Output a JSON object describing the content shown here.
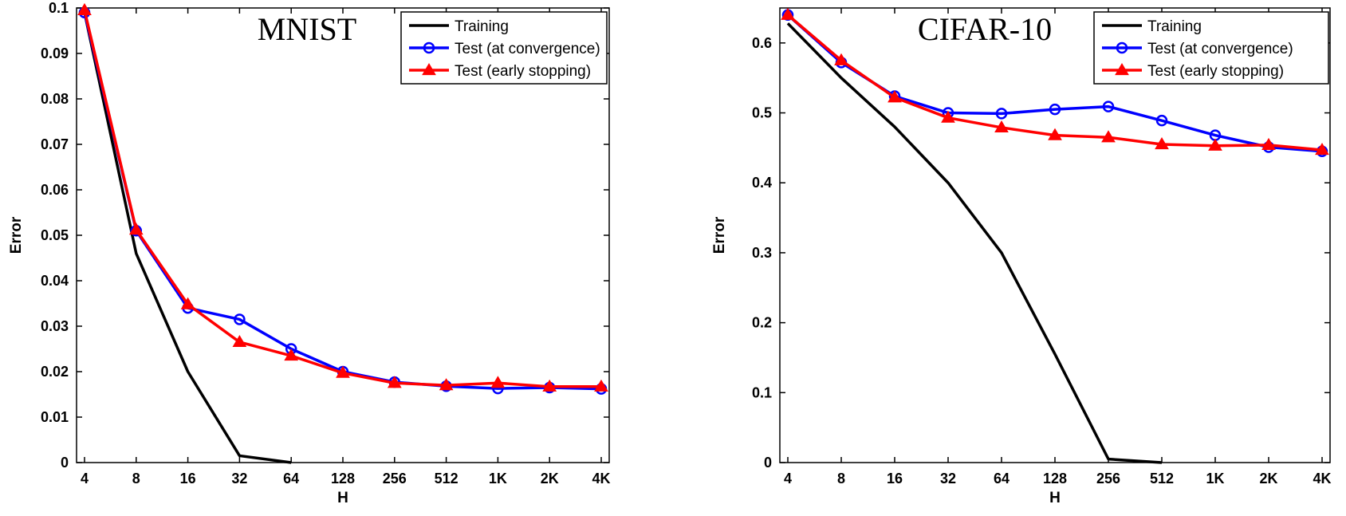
{
  "chart_data": [
    {
      "type": "line",
      "title": "MNIST",
      "xlabel": "H",
      "ylabel": "Error",
      "categories": [
        "4",
        "8",
        "16",
        "32",
        "64",
        "128",
        "256",
        "512",
        "1K",
        "2K",
        "4K"
      ],
      "ylim": [
        0,
        0.1
      ],
      "yticks": [
        "0",
        "0.01",
        "0.02",
        "0.03",
        "0.04",
        "0.05",
        "0.06",
        "0.07",
        "0.08",
        "0.09",
        "0.1"
      ],
      "grid": false,
      "legend": "top-right",
      "series": [
        {
          "name": "Training",
          "color": "#000000",
          "marker": "none",
          "values": [
            0.099,
            0.046,
            0.02,
            0.0015,
            0.0,
            null,
            null,
            null,
            null,
            null,
            null
          ]
        },
        {
          "name": "Test (at convergence)",
          "color": "#0000ff",
          "marker": "circle",
          "values": [
            0.099,
            0.051,
            0.034,
            0.0315,
            0.025,
            0.02,
            0.0177,
            0.0168,
            0.0163,
            0.0165,
            0.0162
          ]
        },
        {
          "name": "Test (early stopping)",
          "color": "#ff0000",
          "marker": "triangle",
          "values": [
            0.0995,
            0.0512,
            0.0348,
            0.0265,
            0.0235,
            0.0197,
            0.0175,
            0.017,
            0.0175,
            0.0167,
            0.0167
          ]
        }
      ]
    },
    {
      "type": "line",
      "title": "CIFAR-10",
      "xlabel": "H",
      "ylabel": "Error",
      "categories": [
        "4",
        "8",
        "16",
        "32",
        "64",
        "128",
        "256",
        "512",
        "1K",
        "2K",
        "4K"
      ],
      "ylim": [
        0,
        0.65
      ],
      "yticks": [
        "0",
        "0.1",
        "0.2",
        "0.3",
        "0.4",
        "0.5",
        "0.6"
      ],
      "grid": false,
      "legend": "top-right",
      "series": [
        {
          "name": "Training",
          "color": "#000000",
          "marker": "none",
          "values": [
            0.628,
            0.55,
            0.48,
            0.4,
            0.3,
            0.155,
            0.005,
            0.0,
            null,
            null,
            null
          ]
        },
        {
          "name": "Test (at convergence)",
          "color": "#0000ff",
          "marker": "circle",
          "values": [
            0.64,
            0.572,
            0.524,
            0.5,
            0.499,
            0.505,
            0.509,
            0.489,
            0.468,
            0.451,
            0.445
          ]
        },
        {
          "name": "Test (early stopping)",
          "color": "#ff0000",
          "marker": "triangle",
          "values": [
            0.64,
            0.575,
            0.522,
            0.493,
            0.479,
            0.468,
            0.465,
            0.455,
            0.453,
            0.454,
            0.447
          ]
        }
      ]
    }
  ]
}
